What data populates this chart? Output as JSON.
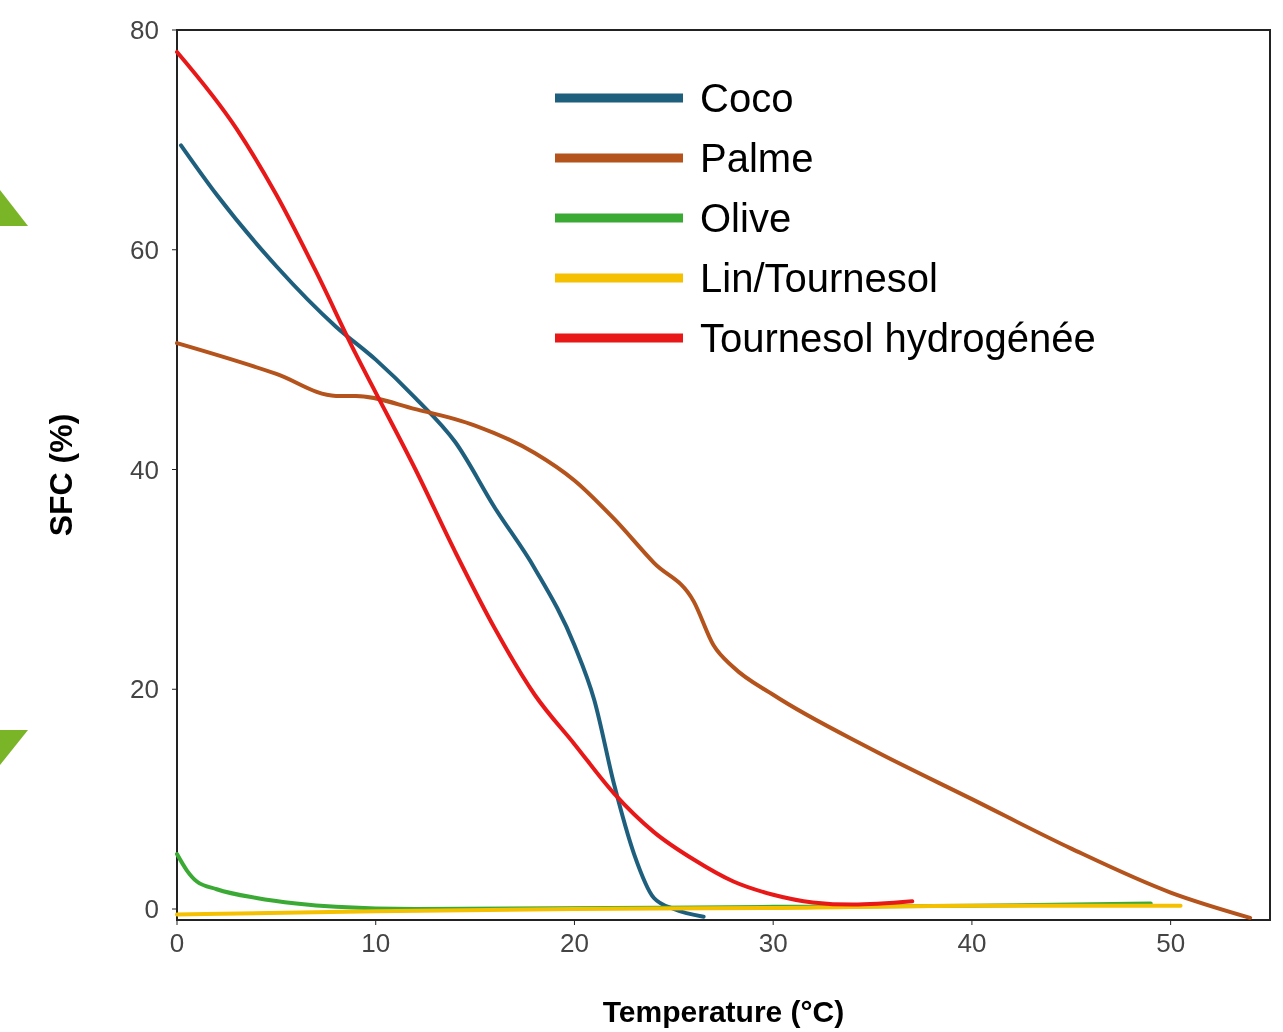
{
  "chart_data": {
    "type": "line",
    "xlabel": "Temperature (°C)",
    "ylabel": "SFC (%)",
    "xlim": [
      0,
      55
    ],
    "ylim": [
      -1,
      80
    ],
    "xticks": [
      0,
      10,
      20,
      30,
      40,
      50
    ],
    "yticks": [
      0,
      20,
      40,
      60,
      80
    ],
    "grid": false,
    "legend": "top right",
    "marker": "none",
    "line_style": "solid",
    "series": [
      {
        "name": "Coco",
        "color": "#1f5f7e",
        "x": [
          0.2,
          2,
          5,
          8,
          10,
          12,
          14,
          16,
          18,
          20,
          21,
          22,
          23,
          24,
          25,
          26.5
        ],
        "values": [
          69.5,
          65,
          58.5,
          53,
          50,
          46.5,
          42.5,
          36.5,
          31,
          24,
          19,
          11.3,
          5,
          1,
          0,
          -0.7
        ]
      },
      {
        "name": "Palme",
        "color": "#b5531c",
        "x": [
          0,
          5,
          8,
          9,
          12,
          15,
          18,
          20,
          22,
          24,
          26,
          27,
          28,
          30,
          35,
          40,
          45,
          50,
          54
        ],
        "values": [
          51.5,
          48.7,
          46.7,
          46.7,
          45.5,
          44,
          41.5,
          39,
          35.5,
          31.5,
          28,
          24,
          22,
          19.5,
          14.5,
          10,
          5.5,
          1.5,
          -0.8
        ]
      },
      {
        "name": "Olive",
        "color": "#3aaa35",
        "x": [
          0,
          0.5,
          1,
          2,
          4,
          6,
          8,
          12,
          30,
          40,
          49
        ],
        "values": [
          5,
          3.5,
          2.5,
          1.8,
          1,
          0.5,
          0.2,
          0,
          0.2,
          0.3,
          0.5
        ]
      },
      {
        "name": "Lin/Tournesol",
        "color": "#f5c000",
        "x": [
          0,
          10,
          20,
          30,
          40,
          50.5
        ],
        "values": [
          -0.5,
          -0.2,
          0,
          0.1,
          0.3,
          0.3
        ]
      },
      {
        "name": "Tournesol hydrogénée",
        "color": "#e81818",
        "x": [
          0,
          3,
          5,
          7,
          9,
          10,
          12,
          14,
          16,
          18,
          20,
          22,
          24,
          26,
          28,
          30,
          32,
          34,
          37
        ],
        "values": [
          78,
          71,
          65,
          58,
          50.5,
          47,
          40,
          32.5,
          25.5,
          19.5,
          15,
          10.5,
          7,
          4.5,
          2.5,
          1.3,
          0.6,
          0.4,
          0.7
        ]
      }
    ]
  }
}
